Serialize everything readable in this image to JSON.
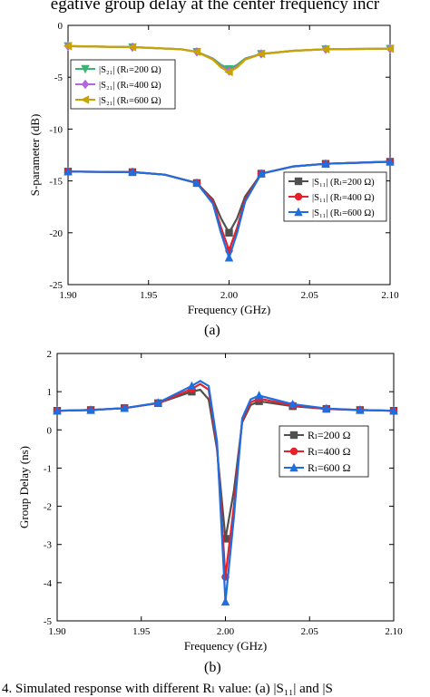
{
  "page": {
    "top_caption": "egative group delay at the center frequency incr",
    "bottom_caption": "4. Simulated response with different Rₗ value: (a) |S₁₁| and |S",
    "label_a": "(a)",
    "label_b": "(b)"
  },
  "chart_data": [
    {
      "type": "line",
      "xlabel": "Frequency (GHz)",
      "ylabel": "S-parameter (dB)",
      "xlim": [
        1.9,
        2.1
      ],
      "ylim": [
        -25,
        0
      ],
      "xticks": [
        "1.90",
        "1.95",
        "2.00",
        "2.05",
        "2.10"
      ],
      "yticks": [
        "0",
        "-5",
        "-10",
        "-15",
        "-20",
        "-25"
      ],
      "legends": [
        {
          "position": "upper-left",
          "entries": [
            "|S₂₁| (Rₗ=200 Ω)",
            "|S₂₁| (Rₗ=400 Ω)",
            "|S₂₁| (Rₗ=600 Ω)"
          ]
        },
        {
          "position": "middle-right",
          "entries": [
            "|S₁₁| (Rₗ=200 Ω)",
            "|S₁₁| (Rₗ=400 Ω)",
            "|S₁₁| (Rₗ=600 Ω)"
          ]
        }
      ],
      "markers_x": [
        1.9,
        1.94,
        1.98,
        2.0,
        2.02,
        2.06,
        2.1
      ],
      "series": [
        {
          "name": "|S₂₁| (Rₗ=200 Ω)",
          "color": "#3cb371",
          "marker": "triangle-down",
          "x": [
            1.9,
            1.94,
            1.97,
            1.98,
            1.99,
            1.995,
            2.0,
            2.005,
            2.01,
            2.02,
            2.04,
            2.06,
            2.1
          ],
          "y": [
            -2.0,
            -2.1,
            -2.3,
            -2.55,
            -3.2,
            -3.8,
            -4.2,
            -3.8,
            -3.2,
            -2.75,
            -2.45,
            -2.3,
            -2.25
          ]
        },
        {
          "name": "|S₂₁| (Rₗ=400 Ω)",
          "color": "#b266e0",
          "marker": "diamond",
          "x": [
            1.9,
            1.94,
            1.97,
            1.98,
            1.99,
            1.995,
            2.0,
            2.005,
            2.01,
            2.02,
            2.04,
            2.06,
            2.1
          ],
          "y": [
            -2.0,
            -2.1,
            -2.3,
            -2.55,
            -3.25,
            -3.95,
            -4.4,
            -3.95,
            -3.25,
            -2.75,
            -2.45,
            -2.3,
            -2.25
          ]
        },
        {
          "name": "|S₂₁| (Rₗ=600 Ω)",
          "color": "#c8a400",
          "marker": "triangle-left",
          "x": [
            1.9,
            1.94,
            1.97,
            1.98,
            1.99,
            1.995,
            2.0,
            2.005,
            2.01,
            2.02,
            2.04,
            2.06,
            2.1
          ],
          "y": [
            -2.0,
            -2.1,
            -2.3,
            -2.55,
            -3.3,
            -4.05,
            -4.5,
            -4.05,
            -3.3,
            -2.75,
            -2.45,
            -2.3,
            -2.25
          ]
        },
        {
          "name": "|S₁₁| (Rₗ=200 Ω)",
          "color": "#505050",
          "marker": "square",
          "x": [
            1.9,
            1.94,
            1.96,
            1.98,
            1.99,
            1.995,
            2.0,
            2.005,
            2.01,
            2.02,
            2.04,
            2.06,
            2.1
          ],
          "y": [
            -14.1,
            -14.15,
            -14.4,
            -15.2,
            -16.8,
            -18.6,
            -20.0,
            -18.6,
            -16.5,
            -14.3,
            -13.6,
            -13.35,
            -13.15
          ]
        },
        {
          "name": "|S₁₁| (Rₗ=400 Ω)",
          "color": "#e8202a",
          "marker": "circle",
          "x": [
            1.9,
            1.94,
            1.96,
            1.98,
            1.99,
            1.995,
            2.0,
            2.005,
            2.01,
            2.02,
            2.04,
            2.06,
            2.1
          ],
          "y": [
            -14.1,
            -14.15,
            -14.4,
            -15.2,
            -17.0,
            -19.5,
            -21.7,
            -19.5,
            -16.8,
            -14.3,
            -13.6,
            -13.35,
            -13.15
          ]
        },
        {
          "name": "|S₁₁| (Rₗ=600 Ω)",
          "color": "#1e6ee0",
          "marker": "triangle-up",
          "x": [
            1.9,
            1.94,
            1.96,
            1.98,
            1.99,
            1.995,
            2.0,
            2.005,
            2.01,
            2.02,
            2.04,
            2.06,
            2.1
          ],
          "y": [
            -14.1,
            -14.15,
            -14.4,
            -15.2,
            -17.2,
            -20.0,
            -22.4,
            -20.0,
            -17.0,
            -14.3,
            -13.6,
            -13.35,
            -13.15
          ]
        }
      ]
    },
    {
      "type": "line",
      "xlabel": "Frequency (GHz)",
      "ylabel": "Group Delay (ns)",
      "xlim": [
        1.9,
        2.1
      ],
      "ylim": [
        -5,
        2
      ],
      "xticks": [
        "1.90",
        "1.95",
        "2.00",
        "2.05",
        "2.10"
      ],
      "yticks": [
        "2",
        "1",
        "0",
        "-1",
        "-2",
        "-3",
        "-4",
        "-5"
      ],
      "legends": [
        {
          "position": "middle-right",
          "entries": [
            "Rₗ=200 Ω",
            "Rₗ=400 Ω",
            "Rₗ=600 Ω"
          ]
        }
      ],
      "markers_x": [
        1.9,
        1.92,
        1.94,
        1.96,
        1.98,
        2.0,
        2.02,
        2.04,
        2.06,
        2.08,
        2.1
      ],
      "series": [
        {
          "name": "Rₗ=200 Ω",
          "color": "#505050",
          "marker": "square",
          "x": [
            1.9,
            1.92,
            1.94,
            1.96,
            1.98,
            1.985,
            1.99,
            1.995,
            2.0,
            2.005,
            2.01,
            2.015,
            2.02,
            2.04,
            2.06,
            2.08,
            2.1
          ],
          "y": [
            0.5,
            0.52,
            0.57,
            0.7,
            1.0,
            1.05,
            0.8,
            -0.5,
            -2.85,
            -1.6,
            0.2,
            0.65,
            0.75,
            0.62,
            0.55,
            0.52,
            0.5
          ]
        },
        {
          "name": "Rₗ=400 Ω",
          "color": "#e8202a",
          "marker": "circle",
          "x": [
            1.9,
            1.92,
            1.94,
            1.96,
            1.98,
            1.985,
            1.99,
            1.995,
            2.0,
            2.005,
            2.01,
            2.015,
            2.02,
            2.04,
            2.06,
            2.08,
            2.1
          ],
          "y": [
            0.5,
            0.52,
            0.57,
            0.7,
            1.07,
            1.2,
            1.05,
            -0.4,
            -3.85,
            -2.0,
            0.25,
            0.72,
            0.82,
            0.64,
            0.55,
            0.52,
            0.5
          ]
        },
        {
          "name": "Rₗ=600 Ω",
          "color": "#1e6ee0",
          "marker": "triangle-up",
          "x": [
            1.9,
            1.92,
            1.94,
            1.96,
            1.98,
            1.985,
            1.99,
            1.995,
            2.0,
            2.005,
            2.01,
            2.015,
            2.02,
            2.04,
            2.06,
            2.08,
            2.1
          ],
          "y": [
            0.5,
            0.52,
            0.57,
            0.71,
            1.15,
            1.28,
            1.15,
            -0.3,
            -4.5,
            -2.3,
            0.3,
            0.8,
            0.9,
            0.67,
            0.56,
            0.52,
            0.5
          ]
        }
      ]
    }
  ]
}
